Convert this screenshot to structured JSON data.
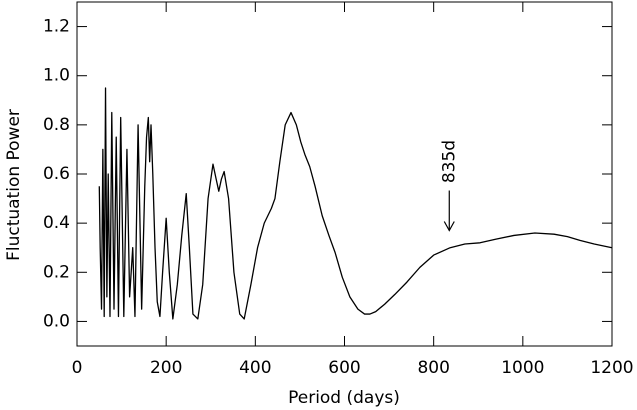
{
  "chart_data": {
    "type": "line",
    "xlabel": "Period (days)",
    "ylabel": "Fluctuation Power",
    "xlim": [
      0,
      1200
    ],
    "ylim": [
      -0.1,
      1.3
    ],
    "xticks": [
      0,
      200,
      400,
      600,
      800,
      1000,
      1200
    ],
    "yticks": [
      {
        "value": 0,
        "label": "0.0"
      },
      0.2,
      0.4,
      0.6,
      0.8,
      {
        "value": 1,
        "label": "1.0"
      },
      1.2
    ],
    "color": "#000000",
    "x": [
      50,
      52,
      55,
      58,
      61,
      64,
      67,
      70,
      74,
      78,
      83,
      88,
      93,
      98,
      105,
      112,
      118,
      125,
      130,
      137,
      145,
      152,
      156,
      160,
      163,
      166,
      170,
      175,
      180,
      186,
      192,
      200,
      207,
      215,
      225,
      235,
      245,
      252,
      260,
      271,
      282,
      294,
      305,
      312,
      318,
      324,
      330,
      340,
      352,
      365,
      375,
      390,
      405,
      420,
      428,
      436,
      444,
      455,
      467,
      480,
      492,
      502,
      511,
      522,
      534,
      550,
      565,
      579,
      595,
      612,
      630,
      645,
      657,
      670,
      690,
      713,
      740,
      769,
      800,
      837,
      870,
      904,
      940,
      980,
      1027,
      1070,
      1100,
      1128,
      1160,
      1200
    ],
    "values": [
      0.55,
      0.3,
      0.05,
      0.7,
      0.02,
      0.95,
      0.1,
      0.6,
      0.02,
      0.85,
      0.05,
      0.75,
      0.02,
      0.83,
      0.02,
      0.7,
      0.1,
      0.3,
      0.02,
      0.8,
      0.05,
      0.55,
      0.75,
      0.83,
      0.65,
      0.8,
      0.6,
      0.3,
      0.08,
      0.02,
      0.2,
      0.42,
      0.2,
      0.01,
      0.15,
      0.35,
      0.52,
      0.3,
      0.03,
      0.01,
      0.15,
      0.5,
      0.64,
      0.58,
      0.53,
      0.58,
      0.61,
      0.5,
      0.2,
      0.03,
      0.01,
      0.15,
      0.3,
      0.4,
      0.43,
      0.46,
      0.5,
      0.65,
      0.8,
      0.85,
      0.8,
      0.73,
      0.68,
      0.63,
      0.55,
      0.43,
      0.35,
      0.28,
      0.18,
      0.1,
      0.05,
      0.03,
      0.03,
      0.04,
      0.07,
      0.11,
      0.16,
      0.22,
      0.27,
      0.3,
      0.315,
      0.32,
      0.335,
      0.35,
      0.36,
      0.355,
      0.345,
      0.33,
      0.315,
      0.3
    ],
    "annotations": [
      {
        "text": "835d",
        "x": 835,
        "y": 0.37
      }
    ]
  }
}
